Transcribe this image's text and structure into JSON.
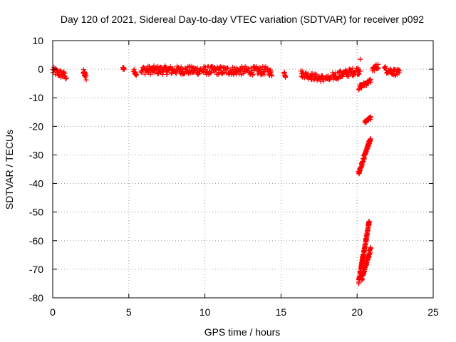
{
  "chart_data": {
    "type": "scatter",
    "title": "Day 120 of 2021, Sidereal Day-to-day VTEC variation (SDTVAR) for receiver p092",
    "xlabel": "GPS time / hours",
    "ylabel": "SDTVAR / TECUs",
    "xlim": [
      0,
      25
    ],
    "ylim": [
      -80,
      10
    ],
    "xticks": [
      0,
      5,
      10,
      15,
      20,
      25
    ],
    "yticks": [
      10,
      0,
      -10,
      -20,
      -30,
      -40,
      -50,
      -60,
      -70,
      -80
    ],
    "grid": true,
    "marker": "+",
    "series": [
      {
        "name": "SDTVAR",
        "color": "#ff0000",
        "segments": [
          {
            "x": [
              0.0,
              0.9
            ],
            "y": [
              -0.5,
              -2.5
            ],
            "spread": 1.4
          },
          {
            "x": [
              2.0,
              2.2
            ],
            "y": [
              -1.0,
              -2.8
            ],
            "spread": 1.2
          },
          {
            "x": [
              4.6,
              4.7
            ],
            "y": [
              0.5,
              0.2
            ],
            "spread": 0.6
          },
          {
            "x": [
              5.3,
              5.5
            ],
            "y": [
              -0.5,
              -1.5
            ],
            "spread": 0.8
          },
          {
            "x": [
              5.8,
              14.0
            ],
            "y": [
              -0.3,
              -0.6
            ],
            "spread": 1.5
          },
          {
            "x": [
              14.1,
              14.4
            ],
            "y": [
              -0.5,
              -1.5
            ],
            "spread": 1.2
          },
          {
            "x": [
              15.2,
              15.3
            ],
            "y": [
              -1.0,
              -2.5
            ],
            "spread": 0.6
          },
          {
            "x": [
              16.3,
              17.0
            ],
            "y": [
              -1.5,
              -2.5
            ],
            "spread": 1.2
          },
          {
            "x": [
              17.0,
              17.8
            ],
            "y": [
              -2.5,
              -3.3
            ],
            "spread": 1.2
          },
          {
            "x": [
              17.9,
              18.3
            ],
            "y": [
              -3.0,
              -3.6
            ],
            "spread": 1.0
          },
          {
            "x": [
              18.4,
              20.2
            ],
            "y": [
              -2.5,
              -0.3
            ],
            "spread": 1.4
          },
          {
            "x": [
              20.1,
              20.9
            ],
            "y": [
              -6.5,
              -4.0
            ],
            "spread": 0.8
          },
          {
            "x": [
              20.5,
              20.9
            ],
            "y": [
              -18.5,
              -17.0
            ],
            "spread": 0.5
          },
          {
            "x": [
              20.1,
              20.9
            ],
            "y": [
              -36.5,
              -24.0
            ],
            "spread": 0.8
          },
          {
            "x": [
              20.1,
              20.8
            ],
            "y": [
              -74.5,
              -53.0
            ],
            "spread": 1.0
          },
          {
            "x": [
              20.3,
              20.9
            ],
            "y": [
              -73.0,
              -63.0
            ],
            "spread": 1.0
          },
          {
            "x": [
              21.0,
              21.4
            ],
            "y": [
              0.0,
              1.2
            ],
            "spread": 1.0
          },
          {
            "x": [
              21.8,
              22.8
            ],
            "y": [
              0.0,
              -1.5
            ],
            "spread": 1.2
          }
        ],
        "points": [
          {
            "x": 20.2,
            "y": 3.5
          }
        ]
      }
    ]
  }
}
